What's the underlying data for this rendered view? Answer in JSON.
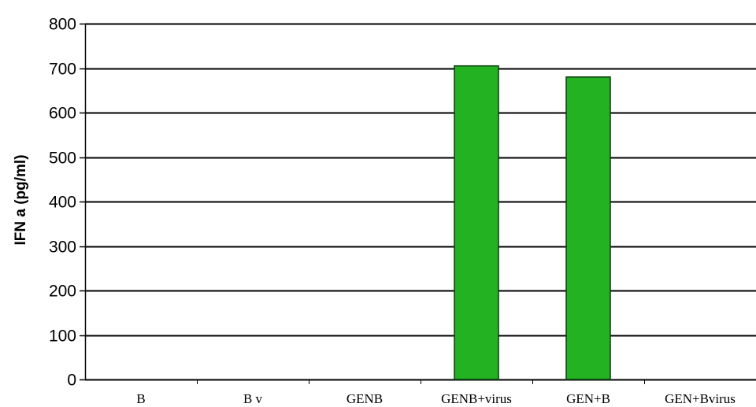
{
  "chart_data": {
    "type": "bar",
    "categories": [
      "B",
      "B v",
      "GENB",
      "GENB+virus",
      "GEN+B",
      "GEN+Bvirus"
    ],
    "values": [
      0,
      0,
      0,
      705,
      680,
      0
    ],
    "xlabel": "",
    "ylabel": "IFN a (pg/ml)",
    "ylim": [
      0,
      800
    ],
    "yticks": [
      "0",
      "100",
      "200",
      "300",
      "400",
      "500",
      "600",
      "700",
      "800"
    ],
    "grid": true,
    "legend": "none",
    "colors": {
      "bar_fill": "#22b222",
      "bar_stroke": "#0c3c0c",
      "grid": "#000000",
      "axis": "#000000"
    }
  }
}
